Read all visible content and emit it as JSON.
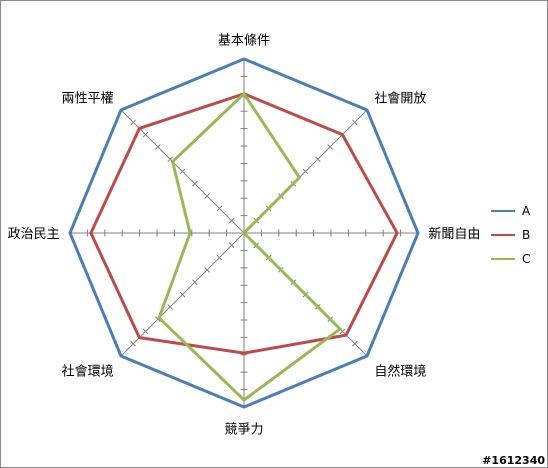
{
  "chart_data": {
    "type": "radar",
    "categories": [
      "基本條件",
      "社會開放",
      "新聞自由",
      "自然環境",
      "競爭力",
      "社會環境",
      "政治民主",
      "兩性平權"
    ],
    "rmax": 10,
    "series": [
      {
        "name": "A",
        "color": "#4a7ebb",
        "values": [
          10,
          10,
          10,
          10,
          10,
          10,
          10,
          10
        ]
      },
      {
        "name": "B",
        "color": "#be4b48",
        "values": [
          8,
          8,
          8.8,
          8.3,
          6.9,
          8.5,
          8.8,
          8.5
        ]
      },
      {
        "name": "C",
        "color": "#98b954",
        "values": [
          8,
          4.5,
          0,
          7.8,
          9.6,
          6.9,
          3.1,
          5.8
        ]
      }
    ],
    "grid": "spokes-with-ticks",
    "legend_position": "right"
  },
  "watermark": "#1612340"
}
